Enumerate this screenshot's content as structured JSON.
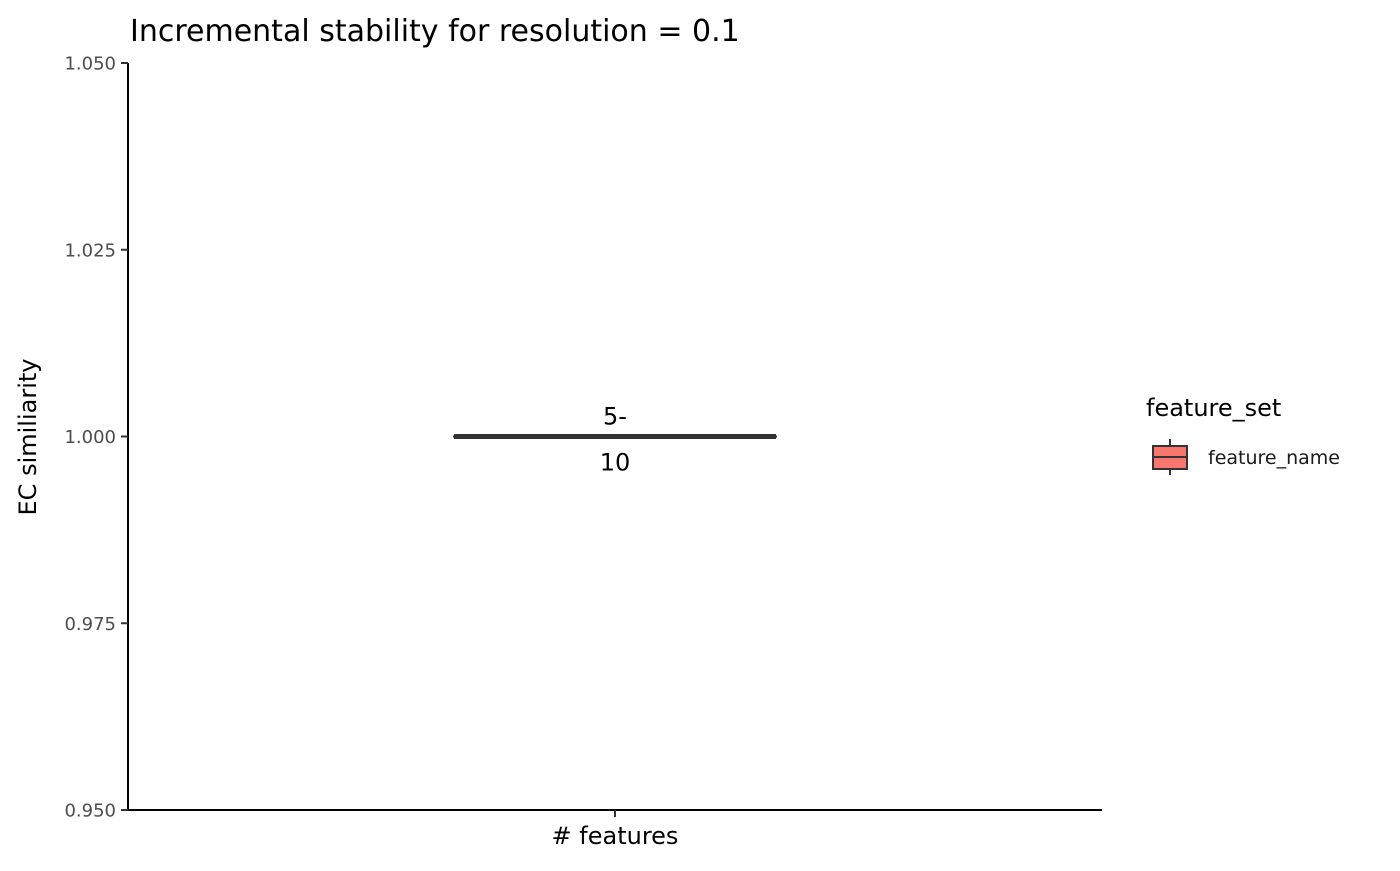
{
  "chart_data": {
    "type": "boxplot",
    "title": "Incremental stability for resolution = 0.1",
    "xlabel": "",
    "ylabel": "EC similiarity",
    "ylim": [
      0.95,
      1.05
    ],
    "yticks": [
      0.95,
      0.975,
      1.0,
      1.025,
      1.05
    ],
    "ytick_labels": [
      "0.950",
      "0.975",
      "1.000",
      "1.025",
      "1.050"
    ],
    "categories": [
      "# features"
    ],
    "series": [
      {
        "name": "feature_name",
        "color": "#F8766D",
        "boxes": [
          {
            "category": "# features",
            "min": 1.0,
            "q1": 1.0,
            "median": 1.0,
            "q3": 1.0,
            "max": 1.0,
            "label_lines": [
              "5-",
              "10"
            ]
          }
        ]
      }
    ],
    "legend": {
      "title": "feature_set",
      "position": "right",
      "items": [
        {
          "label": "feature_name",
          "color": "#F8766D"
        }
      ]
    },
    "grid": false
  }
}
